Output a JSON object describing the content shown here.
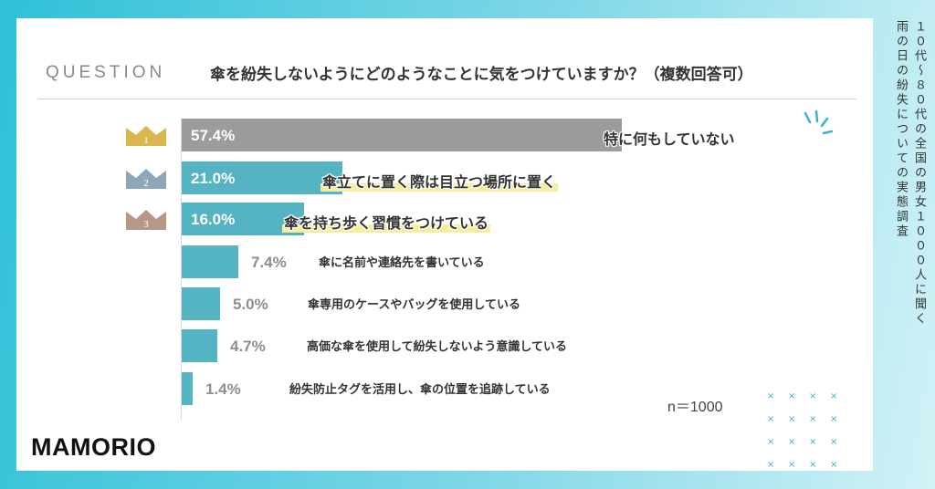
{
  "header": {
    "question_label": "QUESTION",
    "question_text": "傘を紛失しないようにどのようなことに気をつけていますか？（複数回答可）"
  },
  "side_caption": {
    "line1": "１０代〜８０代の全国の男女１０００人に聞く",
    "line2": "雨の日の紛失についての実態調査"
  },
  "note": "n＝1000",
  "logo_text": "MAMORIO",
  "colors": {
    "bar_top": "#9c9c9c",
    "bar": "#55b4c4",
    "crown_gold": "#d8b84c",
    "crown_silver": "#8fa6b8",
    "crown_bronze": "#b59888",
    "highlight": "#f6ee9b",
    "background_gradient": [
      "#2fc1d8",
      "#d2f2f7"
    ]
  },
  "icons": [
    "crown-gold-icon",
    "crown-silver-icon",
    "crown-bronze-icon",
    "sparkle-lines-icon",
    "cross-mark-icon"
  ],
  "chart_data": {
    "type": "bar",
    "orientation": "horizontal",
    "categories": [
      "特に何もしていない",
      "傘立てに置く際は目立つ場所に置く",
      "傘を持ち歩く習慣をつけている",
      "傘に名前や連絡先を書いている",
      "傘専用のケースやバッグを使用している",
      "高価な傘を使用して紛失しないよう意識している",
      "紛失防止タグを活用し、傘の位置を追跡している"
    ],
    "values": [
      57.4,
      21.0,
      16.0,
      7.4,
      5.0,
      4.7,
      1.4
    ],
    "value_labels": [
      "57.4%",
      "21.0%",
      "16.0%",
      "7.4%",
      "5.0%",
      "4.7%",
      "1.4%"
    ],
    "ranks": [
      "1",
      "2",
      "3"
    ],
    "unit": "%",
    "xlim": [
      0,
      60
    ]
  }
}
